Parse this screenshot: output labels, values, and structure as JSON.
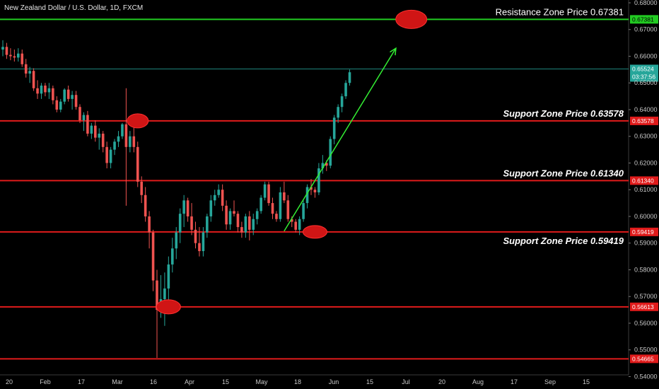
{
  "header": {
    "title": "New Zealand Dollar / U.S. Dollar, 1D, FXCM"
  },
  "colors": {
    "background": "#000000",
    "up": "#26a69a",
    "down": "#ef5350",
    "support": "#e01b1b",
    "resistance": "#22cc22",
    "arrow": "#33ee33",
    "current": "#26a69a"
  },
  "chart_data": {
    "type": "candlestick",
    "ylim": [
      0.538,
      0.68
    ],
    "y_ticks": [
      "0.68000",
      "0.67000",
      "0.66000",
      "0.65000",
      "0.64000",
      "0.63000",
      "0.62000",
      "0.61000",
      "0.60000",
      "0.59000",
      "0.58000",
      "0.57000",
      "0.56000",
      "0.55000",
      "0.54000"
    ],
    "x_ticks": [
      "20",
      "Feb",
      "17",
      "Mar",
      "16",
      "Apr",
      "15",
      "May",
      "18",
      "Jun",
      "15",
      "Jul",
      "20",
      "Aug",
      "17",
      "Sep",
      "15"
    ],
    "levels": [
      {
        "kind": "resistance",
        "price": 0.67381,
        "tag": "0.67381",
        "label": "Resistance Zone Price 0.67381"
      },
      {
        "kind": "support",
        "price": 0.63578,
        "tag": "0.63578",
        "label": "Support Zone Price 0.63578"
      },
      {
        "kind": "support",
        "price": 0.6134,
        "tag": "0.61340",
        "label": "Support Zone Price 0.61340"
      },
      {
        "kind": "support",
        "price": 0.59419,
        "tag": "0.59419",
        "label": "Support Zone Price 0.59419"
      },
      {
        "kind": "support",
        "price": 0.56613,
        "tag": "0.56613",
        "label": ""
      },
      {
        "kind": "support",
        "price": 0.54665,
        "tag": "0.54665",
        "label": ""
      }
    ],
    "current": {
      "price": 0.65524,
      "tag": "0.65524",
      "countdown": "03:37:56"
    },
    "markers": [
      {
        "x_index": 0.0,
        "price": 0.67381,
        "slot": 96
      },
      {
        "price": 0.63578,
        "slot": 31
      },
      {
        "price": 0.56613,
        "slot": 39
      },
      {
        "price": 0.59419,
        "slot": 73
      }
    ],
    "arrow": {
      "from_slot": 73,
      "from_price": 0.5945,
      "to_slot": 102,
      "to_price": 0.663
    },
    "candles": [
      [
        0.6625,
        0.666,
        0.66,
        0.6635
      ],
      [
        0.6635,
        0.665,
        0.659,
        0.6605
      ],
      [
        0.6605,
        0.663,
        0.6585,
        0.66
      ],
      [
        0.66,
        0.6625,
        0.658,
        0.6595
      ],
      [
        0.6595,
        0.663,
        0.658,
        0.661
      ],
      [
        0.661,
        0.6625,
        0.656,
        0.657
      ],
      [
        0.657,
        0.659,
        0.652,
        0.6535
      ],
      [
        0.6535,
        0.656,
        0.65,
        0.6545
      ],
      [
        0.6545,
        0.6555,
        0.647,
        0.648
      ],
      [
        0.648,
        0.651,
        0.644,
        0.646
      ],
      [
        0.646,
        0.65,
        0.644,
        0.649
      ],
      [
        0.649,
        0.65,
        0.645,
        0.6465
      ],
      [
        0.6465,
        0.65,
        0.644,
        0.648
      ],
      [
        0.648,
        0.649,
        0.642,
        0.6435
      ],
      [
        0.6435,
        0.645,
        0.639,
        0.64
      ],
      [
        0.64,
        0.644,
        0.639,
        0.643
      ],
      [
        0.643,
        0.648,
        0.642,
        0.6475
      ],
      [
        0.6475,
        0.649,
        0.643,
        0.644
      ],
      [
        0.644,
        0.647,
        0.64,
        0.6455
      ],
      [
        0.6455,
        0.647,
        0.64,
        0.641
      ],
      [
        0.641,
        0.642,
        0.635,
        0.636
      ],
      [
        0.636,
        0.639,
        0.632,
        0.638
      ],
      [
        0.638,
        0.6395,
        0.63,
        0.631
      ],
      [
        0.631,
        0.635,
        0.629,
        0.634
      ],
      [
        0.634,
        0.636,
        0.628,
        0.6295
      ],
      [
        0.6295,
        0.633,
        0.625,
        0.631
      ],
      [
        0.631,
        0.632,
        0.624,
        0.626
      ],
      [
        0.626,
        0.628,
        0.618,
        0.62
      ],
      [
        0.62,
        0.626,
        0.618,
        0.625
      ],
      [
        0.625,
        0.629,
        0.623,
        0.628
      ],
      [
        0.628,
        0.632,
        0.626,
        0.63
      ],
      [
        0.63,
        0.635,
        0.629,
        0.6345
      ],
      [
        0.6345,
        0.648,
        0.604,
        0.626
      ],
      [
        0.626,
        0.632,
        0.624,
        0.63
      ],
      [
        0.63,
        0.636,
        0.624,
        0.626
      ],
      [
        0.626,
        0.628,
        0.611,
        0.613
      ],
      [
        0.613,
        0.615,
        0.605,
        0.608
      ],
      [
        0.608,
        0.611,
        0.598,
        0.6
      ],
      [
        0.6,
        0.602,
        0.588,
        0.594
      ],
      [
        0.594,
        0.595,
        0.572,
        0.576
      ],
      [
        0.576,
        0.58,
        0.547,
        0.565
      ],
      [
        0.565,
        0.578,
        0.562,
        0.569
      ],
      [
        0.569,
        0.579,
        0.559,
        0.573
      ],
      [
        0.573,
        0.585,
        0.568,
        0.582
      ],
      [
        0.582,
        0.592,
        0.579,
        0.588
      ],
      [
        0.588,
        0.596,
        0.584,
        0.594
      ],
      [
        0.594,
        0.603,
        0.59,
        0.601
      ],
      [
        0.601,
        0.608,
        0.596,
        0.606
      ],
      [
        0.606,
        0.607,
        0.598,
        0.6
      ],
      [
        0.6,
        0.605,
        0.593,
        0.595
      ],
      [
        0.595,
        0.598,
        0.588,
        0.59
      ],
      [
        0.59,
        0.596,
        0.585,
        0.587
      ],
      [
        0.587,
        0.596,
        0.585,
        0.594
      ],
      [
        0.594,
        0.601,
        0.592,
        0.6
      ],
      [
        0.6,
        0.608,
        0.598,
        0.606
      ],
      [
        0.606,
        0.61,
        0.604,
        0.608
      ],
      [
        0.608,
        0.612,
        0.607,
        0.61
      ],
      [
        0.61,
        0.612,
        0.602,
        0.604
      ],
      [
        0.604,
        0.606,
        0.595,
        0.597
      ],
      [
        0.597,
        0.603,
        0.595,
        0.602
      ],
      [
        0.602,
        0.606,
        0.6,
        0.601
      ],
      [
        0.601,
        0.602,
        0.594,
        0.596
      ],
      [
        0.596,
        0.598,
        0.592,
        0.594
      ],
      [
        0.594,
        0.601,
        0.592,
        0.6
      ],
      [
        0.6,
        0.602,
        0.591,
        0.595
      ],
      [
        0.595,
        0.601,
        0.593,
        0.599
      ],
      [
        0.599,
        0.603,
        0.597,
        0.602
      ],
      [
        0.602,
        0.608,
        0.601,
        0.607
      ],
      [
        0.607,
        0.613,
        0.606,
        0.612
      ],
      [
        0.612,
        0.613,
        0.604,
        0.605
      ],
      [
        0.605,
        0.607,
        0.599,
        0.601
      ],
      [
        0.601,
        0.602,
        0.598,
        0.599
      ],
      [
        0.599,
        0.611,
        0.598,
        0.609
      ],
      [
        0.609,
        0.613,
        0.605,
        0.606
      ],
      [
        0.606,
        0.608,
        0.598,
        0.599
      ],
      [
        0.599,
        0.6,
        0.596,
        0.598
      ],
      [
        0.598,
        0.599,
        0.594,
        0.595
      ],
      [
        0.595,
        0.6,
        0.593,
        0.599
      ],
      [
        0.599,
        0.606,
        0.598,
        0.605
      ],
      [
        0.605,
        0.612,
        0.603,
        0.611
      ],
      [
        0.611,
        0.614,
        0.608,
        0.61
      ],
      [
        0.61,
        0.611,
        0.607,
        0.609
      ],
      [
        0.609,
        0.62,
        0.608,
        0.618
      ],
      [
        0.618,
        0.623,
        0.616,
        0.62
      ],
      [
        0.62,
        0.621,
        0.617,
        0.619
      ],
      [
        0.619,
        0.63,
        0.618,
        0.629
      ],
      [
        0.629,
        0.638,
        0.627,
        0.637
      ],
      [
        0.637,
        0.642,
        0.635,
        0.641
      ],
      [
        0.641,
        0.646,
        0.639,
        0.645
      ],
      [
        0.645,
        0.651,
        0.644,
        0.65
      ],
      [
        0.65,
        0.655,
        0.649,
        0.654
      ]
    ]
  }
}
